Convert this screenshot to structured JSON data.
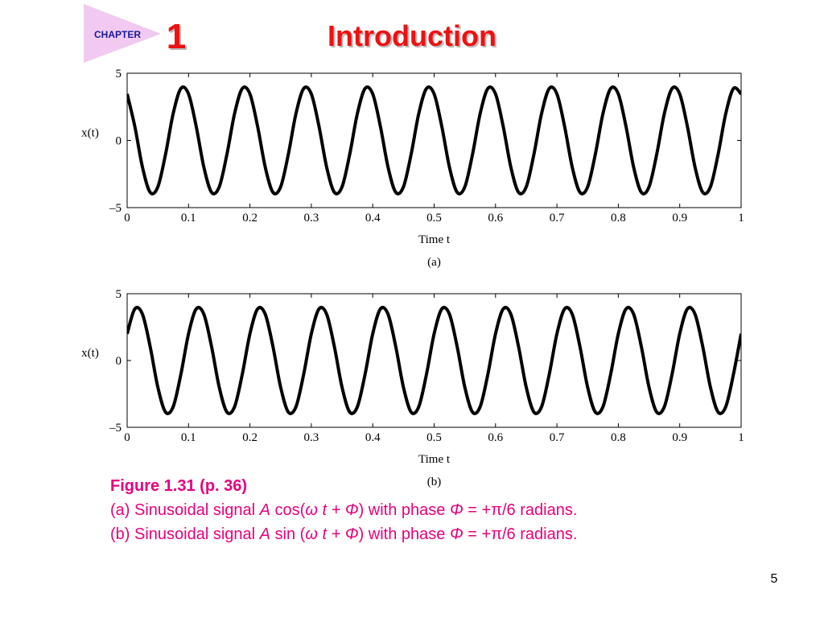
{
  "header": {
    "chapter_label": "CHAPTER",
    "chapter_number": "1",
    "title": "Introduction"
  },
  "chart_data": [
    {
      "type": "line",
      "ylabel": "x(t)",
      "xlabel": "Time t",
      "subcaption": "(a)",
      "color": "#000000",
      "xlim": [
        0,
        1
      ],
      "ylim": [
        -5,
        5
      ],
      "xticks": [
        0,
        0.1,
        0.2,
        0.3,
        0.4,
        0.5,
        0.6,
        0.7,
        0.8,
        0.9,
        1
      ],
      "yticks": [
        {
          "value": -5,
          "label": "–5"
        },
        0,
        5
      ],
      "x": [
        0,
        0.0125,
        0.025,
        0.0375,
        0.05,
        0.0625,
        0.075,
        0.0875,
        0.1,
        0.1125,
        0.125,
        0.1375,
        0.15,
        0.1625,
        0.175,
        0.1875,
        0.2,
        0.2125,
        0.225,
        0.2375,
        0.25,
        0.2625,
        0.275,
        0.2875,
        0.3,
        0.3125,
        0.325,
        0.3375,
        0.35,
        0.3625,
        0.375,
        0.3875,
        0.4,
        0.4125,
        0.425,
        0.4375,
        0.45,
        0.4625,
        0.475,
        0.4875,
        0.5,
        0.5125,
        0.525,
        0.5375,
        0.55,
        0.5625,
        0.575,
        0.5875,
        0.6,
        0.6125,
        0.625,
        0.6375,
        0.65,
        0.6625,
        0.675,
        0.6875,
        0.7,
        0.7125,
        0.725,
        0.7375,
        0.75,
        0.7625,
        0.775,
        0.7875,
        0.8,
        0.8125,
        0.825,
        0.8375,
        0.85,
        0.8625,
        0.875,
        0.8875,
        0.9,
        0.9125,
        0.925,
        0.9375,
        0.95,
        0.9625,
        0.975,
        0.9875,
        1
      ],
      "values": [
        3.46,
        1.04,
        -2,
        -3.86,
        -3.46,
        -1.04,
        2,
        3.86,
        3.46,
        1.04,
        -2,
        -3.86,
        -3.46,
        -1.04,
        2,
        3.86,
        3.46,
        1.04,
        -2,
        -3.86,
        -3.46,
        -1.04,
        2,
        3.86,
        3.46,
        1.04,
        -2,
        -3.86,
        -3.46,
        -1.04,
        2,
        3.86,
        3.46,
        1.04,
        -2,
        -3.86,
        -3.46,
        -1.04,
        2,
        3.86,
        3.46,
        1.04,
        -2,
        -3.86,
        -3.46,
        -1.04,
        2,
        3.86,
        3.46,
        1.04,
        -2,
        -3.86,
        -3.46,
        -1.04,
        2,
        3.86,
        3.46,
        1.04,
        -2,
        -3.86,
        -3.46,
        -1.04,
        2,
        3.86,
        3.46,
        1.04,
        -2,
        -3.86,
        -3.46,
        -1.04,
        2,
        3.86,
        3.46,
        1.04,
        -2,
        -3.86,
        -3.46,
        -1.04,
        2,
        3.86,
        3.46
      ]
    },
    {
      "type": "line",
      "ylabel": "x(t)",
      "xlabel": "Time t",
      "subcaption": "(b)",
      "color": "#000000",
      "xlim": [
        0,
        1
      ],
      "ylim": [
        -5,
        5
      ],
      "xticks": [
        0,
        0.1,
        0.2,
        0.3,
        0.4,
        0.5,
        0.6,
        0.7,
        0.8,
        0.9,
        1
      ],
      "yticks": [
        {
          "value": -5,
          "label": "–5"
        },
        0,
        5
      ],
      "x": [
        0,
        0.0125,
        0.025,
        0.0375,
        0.05,
        0.0625,
        0.075,
        0.0875,
        0.1,
        0.1125,
        0.125,
        0.1375,
        0.15,
        0.1625,
        0.175,
        0.1875,
        0.2,
        0.2125,
        0.225,
        0.2375,
        0.25,
        0.2625,
        0.275,
        0.2875,
        0.3,
        0.3125,
        0.325,
        0.3375,
        0.35,
        0.3625,
        0.375,
        0.3875,
        0.4,
        0.4125,
        0.425,
        0.4375,
        0.45,
        0.4625,
        0.475,
        0.4875,
        0.5,
        0.5125,
        0.525,
        0.5375,
        0.55,
        0.5625,
        0.575,
        0.5875,
        0.6,
        0.6125,
        0.625,
        0.6375,
        0.65,
        0.6625,
        0.675,
        0.6875,
        0.7,
        0.7125,
        0.725,
        0.7375,
        0.75,
        0.7625,
        0.775,
        0.7875,
        0.8,
        0.8125,
        0.825,
        0.8375,
        0.85,
        0.8625,
        0.875,
        0.8875,
        0.9,
        0.9125,
        0.925,
        0.9375,
        0.95,
        0.9625,
        0.975,
        0.9875,
        1
      ],
      "values": [
        2,
        3.86,
        3.46,
        1.04,
        -2,
        -3.86,
        -3.46,
        -1.04,
        2,
        3.86,
        3.46,
        1.04,
        -2,
        -3.86,
        -3.46,
        -1.04,
        2,
        3.86,
        3.46,
        1.04,
        -2,
        -3.86,
        -3.46,
        -1.04,
        2,
        3.86,
        3.46,
        1.04,
        -2,
        -3.86,
        -3.46,
        -1.04,
        2,
        3.86,
        3.46,
        1.04,
        -2,
        -3.86,
        -3.46,
        -1.04,
        2,
        3.86,
        3.46,
        1.04,
        -2,
        -3.86,
        -3.46,
        -1.04,
        2,
        3.86,
        3.46,
        1.04,
        -2,
        -3.86,
        -3.46,
        -1.04,
        2,
        3.86,
        3.46,
        1.04,
        -2,
        -3.86,
        -3.46,
        -1.04,
        2,
        3.86,
        3.46,
        1.04,
        -2,
        -3.86,
        -3.46,
        -1.04,
        2,
        3.86,
        3.46,
        1.04,
        -2,
        -3.86,
        -3.46,
        -1.04,
        2
      ]
    }
  ],
  "caption": {
    "lines": [
      [
        "Figure 1.31  (p. 36)"
      ],
      [
        "(a) Sinusoidal signal ",
        "A",
        " cos(",
        "ω",
        " t + ",
        "Φ",
        ") with phase ",
        "Φ",
        " = +π/6 radians."
      ],
      [
        "(b) Sinusoidal signal ",
        "A",
        " sin (",
        "ω",
        " t + ",
        "Φ",
        ") with phase ",
        "Φ",
        " = +π/6 radians."
      ]
    ]
  },
  "page_number": "5"
}
